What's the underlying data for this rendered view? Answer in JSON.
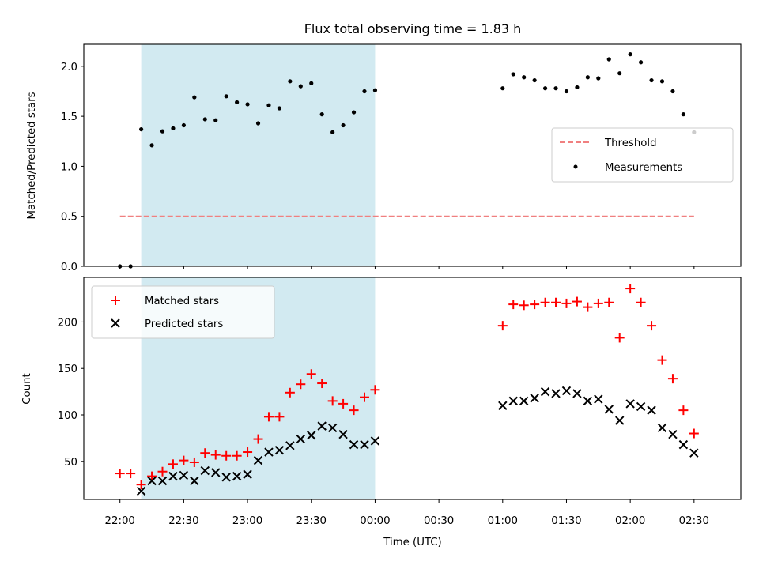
{
  "chart_data": {
    "title": "Flux total observing time = 1.83 h",
    "xlabel": "Time (UTC)",
    "x_tick_labels": [
      "22:00",
      "22:30",
      "23:00",
      "23:30",
      "00:00",
      "00:30",
      "01:00",
      "01:30",
      "02:00",
      "02:30"
    ],
    "x_range": [
      "21:43",
      "02:52"
    ],
    "highlight_span": {
      "start": "22:10",
      "end": "00:00",
      "color": "#add8e6"
    },
    "panels": [
      {
        "type": "scatter",
        "ylabel": "Matched/Predicted stars",
        "ylim": [
          0,
          2.22
        ],
        "y_ticks": [
          "0.0",
          "0.5",
          "1.0",
          "1.5",
          "2.0"
        ],
        "legend_position": "center-right",
        "threshold": {
          "name": "Threshold",
          "value": 0.5,
          "x_start": "22:00",
          "x_end": "02:30",
          "color": "#f08080",
          "style": "dashed"
        },
        "series": [
          {
            "name": "Measurements",
            "marker": "dot",
            "color": "#000000",
            "x": [
              "22:00",
              "22:05",
              "22:10",
              "22:15",
              "22:20",
              "22:25",
              "22:30",
              "22:35",
              "22:40",
              "22:45",
              "22:50",
              "22:55",
              "23:00",
              "23:05",
              "23:10",
              "23:15",
              "23:20",
              "23:25",
              "23:30",
              "23:35",
              "23:40",
              "23:45",
              "23:50",
              "23:55",
              "00:00",
              "01:00",
              "01:05",
              "01:10",
              "01:15",
              "01:20",
              "01:25",
              "01:30",
              "01:35",
              "01:40",
              "01:45",
              "01:50",
              "01:55",
              "02:00",
              "02:05",
              "02:10",
              "02:15",
              "02:20",
              "02:25",
              "02:30"
            ],
            "y": [
              0.0,
              0.0,
              1.37,
              1.21,
              1.35,
              1.38,
              1.41,
              1.69,
              1.47,
              1.46,
              1.7,
              1.64,
              1.62,
              1.43,
              1.61,
              1.58,
              1.85,
              1.8,
              1.83,
              1.52,
              1.34,
              1.41,
              1.54,
              1.75,
              1.76,
              1.78,
              1.92,
              1.89,
              1.86,
              1.78,
              1.78,
              1.75,
              1.79,
              1.89,
              1.88,
              2.07,
              1.93,
              2.12,
              2.04,
              1.86,
              1.85,
              1.75,
              1.52,
              1.34
            ]
          }
        ]
      },
      {
        "type": "scatter",
        "ylabel": "Count",
        "ylim": [
          9,
          248
        ],
        "y_ticks": [
          "50",
          "100",
          "150",
          "200"
        ],
        "legend_position": "upper-left",
        "series": [
          {
            "name": "Matched stars",
            "marker": "plus",
            "color": "#ff0000",
            "x": [
              "22:00",
              "22:05",
              "22:10",
              "22:15",
              "22:20",
              "22:25",
              "22:30",
              "22:35",
              "22:40",
              "22:45",
              "22:50",
              "22:55",
              "23:00",
              "23:05",
              "23:10",
              "23:15",
              "23:20",
              "23:25",
              "23:30",
              "23:35",
              "23:40",
              "23:45",
              "23:50",
              "23:55",
              "00:00",
              "01:00",
              "01:05",
              "01:10",
              "01:15",
              "01:20",
              "01:25",
              "01:30",
              "01:35",
              "01:40",
              "01:45",
              "01:50",
              "01:55",
              "02:00",
              "02:05",
              "02:10",
              "02:15",
              "02:20",
              "02:25",
              "02:30"
            ],
            "y": [
              37,
              37,
              25,
              34,
              39,
              47,
              51,
              49,
              59,
              57,
              56,
              56,
              60,
              74,
              98,
              98,
              124,
              133,
              144,
              134,
              115,
              112,
              105,
              119,
              127,
              196,
              219,
              218,
              219,
              221,
              221,
              220,
              222,
              216,
              220,
              221,
              183,
              236,
              221,
              196,
              159,
              139,
              105,
              80
            ]
          },
          {
            "name": "Predicted stars",
            "marker": "x",
            "color": "#000000",
            "x": [
              "22:10",
              "22:15",
              "22:20",
              "22:25",
              "22:30",
              "22:35",
              "22:40",
              "22:45",
              "22:50",
              "22:55",
              "23:00",
              "23:05",
              "23:10",
              "23:15",
              "23:20",
              "23:25",
              "23:30",
              "23:35",
              "23:40",
              "23:45",
              "23:50",
              "23:55",
              "00:00",
              "01:00",
              "01:05",
              "01:10",
              "01:15",
              "01:20",
              "01:25",
              "01:30",
              "01:35",
              "01:40",
              "01:45",
              "01:50",
              "01:55",
              "02:00",
              "02:05",
              "02:10",
              "02:15",
              "02:20",
              "02:25",
              "02:30"
            ],
            "y": [
              18,
              29,
              29,
              34,
              35,
              29,
              40,
              38,
              33,
              34,
              36,
              51,
              60,
              62,
              67,
              74,
              78,
              88,
              86,
              79,
              68,
              68,
              72,
              110,
              115,
              115,
              118,
              125,
              123,
              126,
              123,
              115,
              117,
              106,
              94,
              112,
              109,
              105,
              86,
              79,
              68,
              59
            ]
          }
        ]
      }
    ]
  }
}
